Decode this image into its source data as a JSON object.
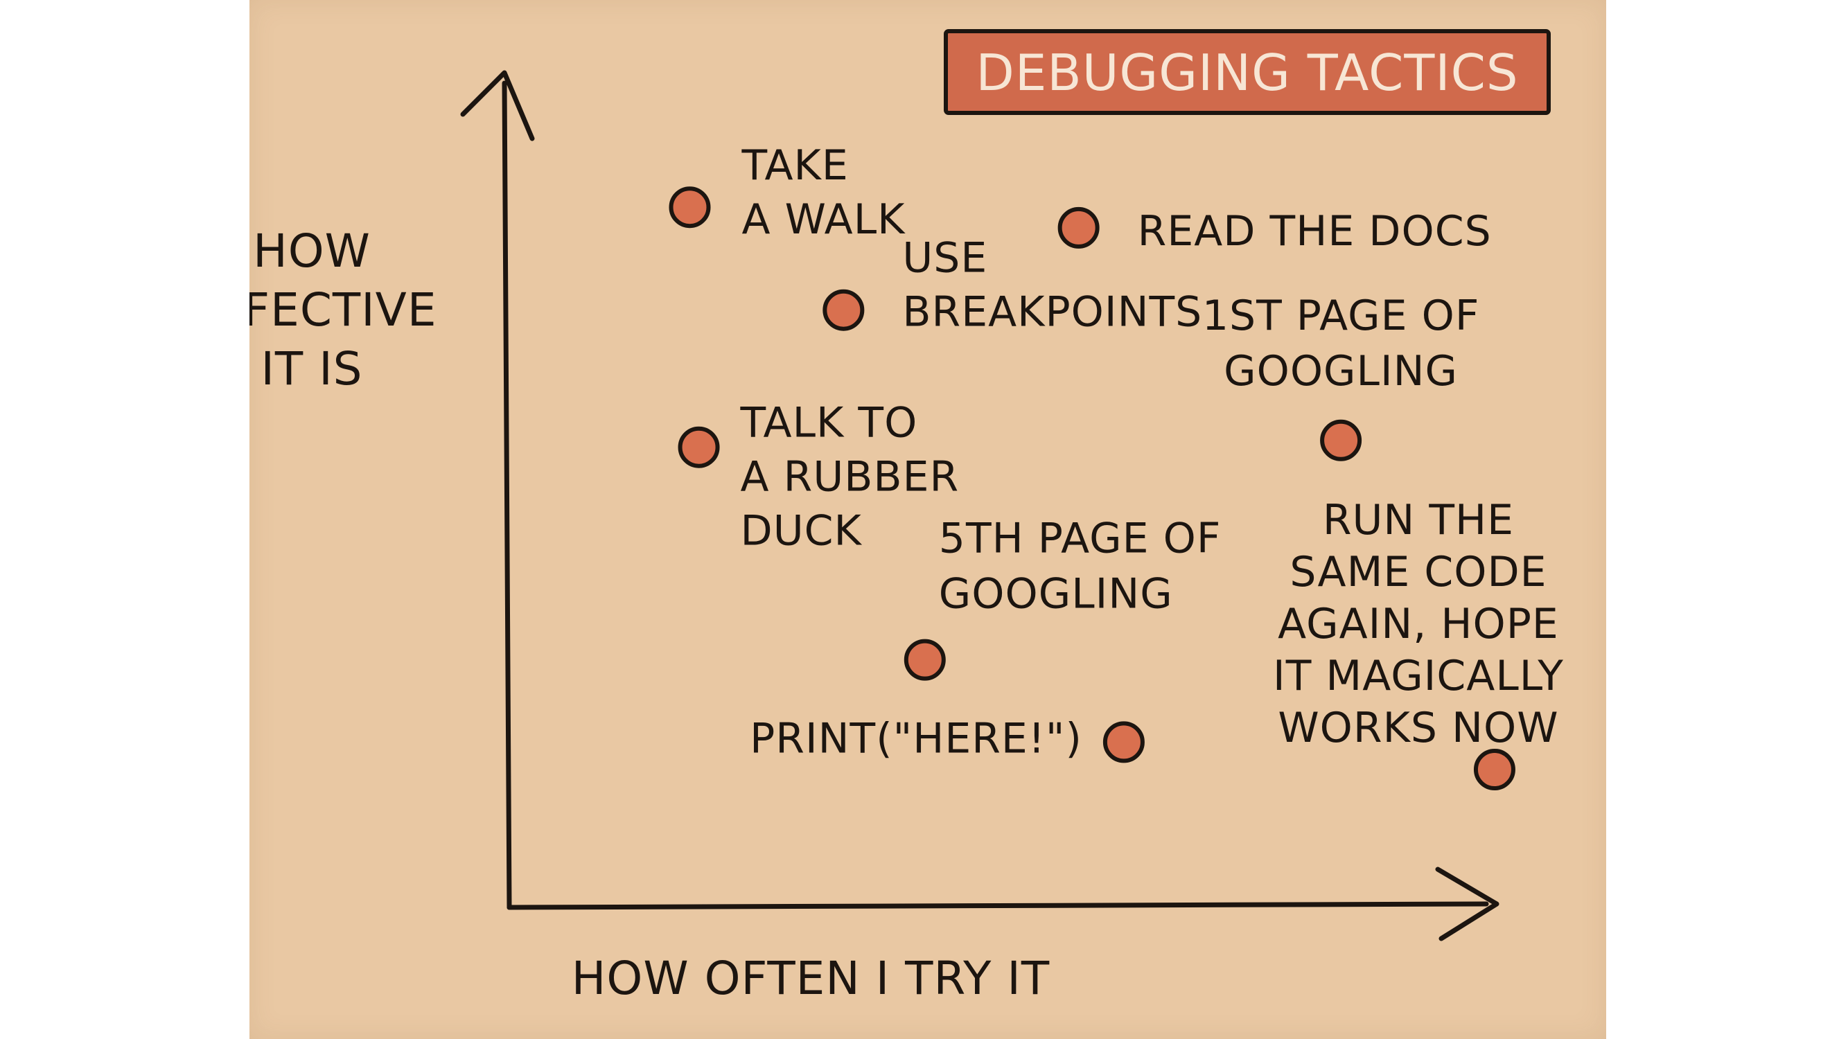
{
  "chart_data": {
    "type": "scatter",
    "title": "DEBUGGING TACTICS",
    "xlabel": "HOW OFTEN I TRY IT",
    "ylabel": [
      "HOW",
      "EFFECTIVE",
      "IT IS"
    ],
    "xlim": [
      0,
      100
    ],
    "ylim": [
      0,
      100
    ],
    "grid": false,
    "colors": {
      "background": "#e9c8a3",
      "point_fill": "#d9704f",
      "stroke": "#1c1510",
      "title_box": "#d06a4c",
      "title_text": "#f7e6d5"
    },
    "points": [
      {
        "label_lines": [
          "TAKE",
          "A WALK"
        ],
        "x": 10,
        "y": 92
      },
      {
        "label_lines": [
          "READ THE DOCS"
        ],
        "x": 53,
        "y": 89
      },
      {
        "label_lines": [
          "USE",
          "BREAKPOINTS"
        ],
        "x": 27,
        "y": 77
      },
      {
        "label_lines": [
          "1ST PAGE OF",
          "GOOGLING"
        ],
        "x": 82,
        "y": 58
      },
      {
        "label_lines": [
          "TALK TO",
          "A RUBBER",
          "DUCK"
        ],
        "x": 11,
        "y": 57
      },
      {
        "label_lines": [
          "5TH PAGE OF",
          "GOOGLING"
        ],
        "x": 36,
        "y": 26
      },
      {
        "label_lines": [
          "PRINT(\"HERE!\")"
        ],
        "x": 58,
        "y": 14
      },
      {
        "label_lines": [
          "RUN THE",
          "SAME CODE",
          "AGAIN, HOPE",
          "IT MAGICALLY",
          "WORKS NOW"
        ],
        "x": 99,
        "y": 10
      }
    ]
  }
}
